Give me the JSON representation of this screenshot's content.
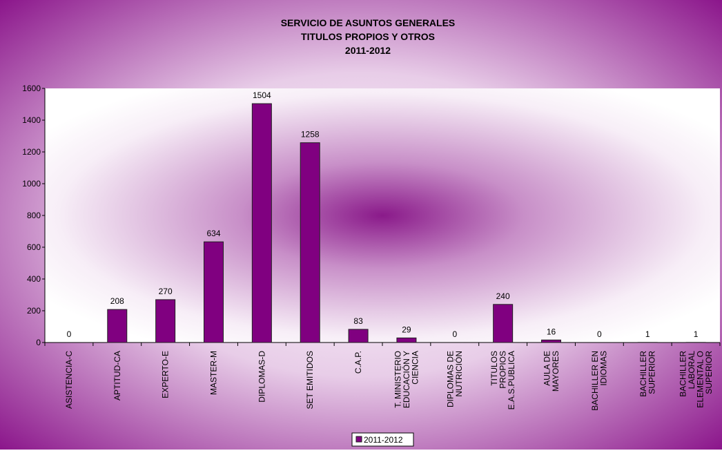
{
  "chart_data": {
    "type": "bar",
    "title": [
      "SERVICIO DE ASUNTOS GENERALES",
      "TITULOS PROPIOS Y OTROS",
      "2011-2012"
    ],
    "categories": [
      "ASISTENCIA-C",
      "APTITUD-CA",
      "EXPERTO-E",
      "MASTER-M",
      "DIPLOMAS-D",
      "SET EMITIDOS",
      "C.A.P.",
      "T. MINISTERIO EDUCACIÓN Y CIENCIA",
      "DIPLOMAS DE NUTRICIÓN",
      "TITULOS PROPIOS E.A.S.PUBLICA",
      "AULA DE MAYORES",
      "BACHILLER EN IDIOMAS",
      "BACHILLER SUPERIOR",
      "BACHILLER LABORAL ELEMENTAL O SUPERIOR"
    ],
    "series": [
      {
        "name": "2011-2012",
        "color": "#800080",
        "values": [
          0,
          208,
          270,
          634,
          1504,
          1258,
          83,
          29,
          0,
          240,
          16,
          0,
          1,
          1
        ]
      }
    ],
    "ylim": [
      0,
      1600
    ],
    "yticks": [
      0,
      200,
      400,
      600,
      800,
      1000,
      1200,
      1400,
      1600
    ],
    "grid": false,
    "legend": "bottom"
  }
}
